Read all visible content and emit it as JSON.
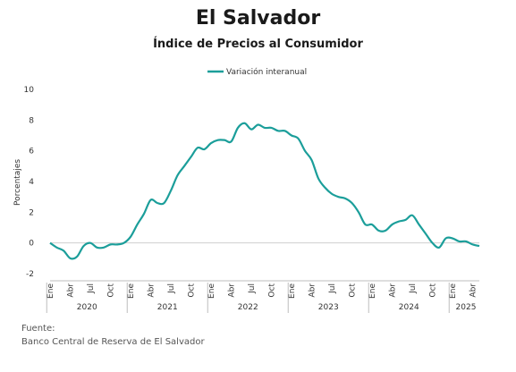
{
  "title": "El Salvador",
  "subtitle": "Índice de Precios al Consumidor",
  "source_label": "Fuente:",
  "source_text": "Banco Central de Reserva de El Salvador",
  "colors": {
    "series": "#1b9e9a",
    "zero_line": "#cfcfcf",
    "axis": "#bdbdbd"
  },
  "chart_data": {
    "type": "line",
    "ylabel": "Porcentajes",
    "ylim": [
      -2,
      10
    ],
    "yticks": [
      "-2",
      "0",
      "2",
      "4",
      "6",
      "8",
      "10"
    ],
    "xtick_labels": [
      "Ene",
      "Abr",
      "Jul",
      "Oct",
      "Ene",
      "Abr",
      "Jul",
      "Oct",
      "Ene",
      "Abr",
      "Jul",
      "Oct",
      "Ene",
      "Abr",
      "Jul",
      "Oct",
      "Ene",
      "Abr",
      "Jul",
      "Oct",
      "Ene",
      "Abr"
    ],
    "years": [
      "2020",
      "2021",
      "2022",
      "2023",
      "2024",
      "2025"
    ],
    "legend_position": "top-center",
    "series": [
      {
        "name": "Variación interanual",
        "x": [
          "2020-01",
          "2020-02",
          "2020-03",
          "2020-04",
          "2020-05",
          "2020-06",
          "2020-07",
          "2020-08",
          "2020-09",
          "2020-10",
          "2020-11",
          "2020-12",
          "2021-01",
          "2021-02",
          "2021-03",
          "2021-04",
          "2021-05",
          "2021-06",
          "2021-07",
          "2021-08",
          "2021-09",
          "2021-10",
          "2021-11",
          "2021-12",
          "2022-01",
          "2022-02",
          "2022-03",
          "2022-04",
          "2022-05",
          "2022-06",
          "2022-07",
          "2022-08",
          "2022-09",
          "2022-10",
          "2022-11",
          "2022-12",
          "2023-01",
          "2023-02",
          "2023-03",
          "2023-04",
          "2023-05",
          "2023-06",
          "2023-07",
          "2023-08",
          "2023-09",
          "2023-10",
          "2023-11",
          "2023-12",
          "2024-01",
          "2024-02",
          "2024-03",
          "2024-04",
          "2024-05",
          "2024-06",
          "2024-07",
          "2024-08",
          "2024-09",
          "2024-10",
          "2024-11",
          "2024-12",
          "2025-01",
          "2025-02",
          "2025-03",
          "2025-04",
          "2025-05"
        ],
        "values": [
          0.0,
          -0.3,
          -0.5,
          -1.0,
          -0.9,
          -0.2,
          0.0,
          -0.3,
          -0.3,
          -0.1,
          -0.1,
          0.0,
          0.4,
          1.2,
          1.9,
          2.8,
          2.6,
          2.6,
          3.4,
          4.4,
          5.0,
          5.6,
          6.2,
          6.1,
          6.5,
          6.7,
          6.7,
          6.6,
          7.5,
          7.8,
          7.4,
          7.7,
          7.5,
          7.5,
          7.3,
          7.3,
          7.0,
          6.8,
          6.0,
          5.4,
          4.2,
          3.6,
          3.2,
          3.0,
          2.9,
          2.6,
          2.0,
          1.2,
          1.2,
          0.8,
          0.8,
          1.2,
          1.4,
          1.5,
          1.8,
          1.2,
          0.6,
          0.0,
          -0.3,
          0.3,
          0.3,
          0.1,
          0.1,
          -0.1,
          -0.2
        ]
      }
    ]
  }
}
